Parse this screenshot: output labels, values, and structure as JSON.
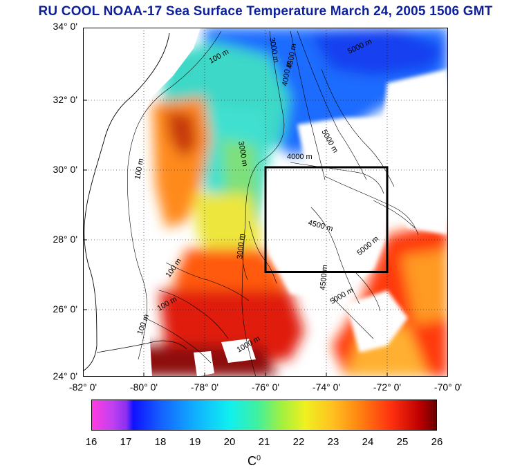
{
  "title": "RU COOL  NOAA-17 Sea Surface Temperature March 24, 2005 1506 GMT",
  "y_axis_labels": [
    "34° 0'",
    "32° 0'",
    "30° 0'",
    "28° 0'",
    "26° 0'",
    "24° 0'"
  ],
  "x_axis_labels": [
    "-82° 0'",
    "-80° 0'",
    "-78° 0'",
    "-76° 0'",
    "-74° 0'",
    "-72° 0'",
    "-70° 0'"
  ],
  "contour_labels": [
    "100 m",
    "100 m",
    "100 m",
    "100 m",
    "100 m",
    "3000 m",
    "3000 m",
    "3000 m",
    "4000 m",
    "4000 m",
    "4500 m",
    "4500 m",
    "4500 m",
    "5000 m",
    "5000 m",
    "5000 m",
    "5000 m",
    "1000 m"
  ],
  "colorbar": {
    "ticks": [
      "16",
      "17",
      "18",
      "19",
      "20",
      "21",
      "22",
      "23",
      "24",
      "25",
      "26"
    ],
    "unit": "C",
    "unit_sup": "0",
    "min": 16,
    "max": 26
  },
  "region_box": {
    "lon_min": -76,
    "lon_max": -72,
    "lat_min": 27,
    "lat_max": 30
  },
  "colors": {
    "title": "#0d1f9a",
    "land": "#ffffff",
    "box": "#000000"
  }
}
